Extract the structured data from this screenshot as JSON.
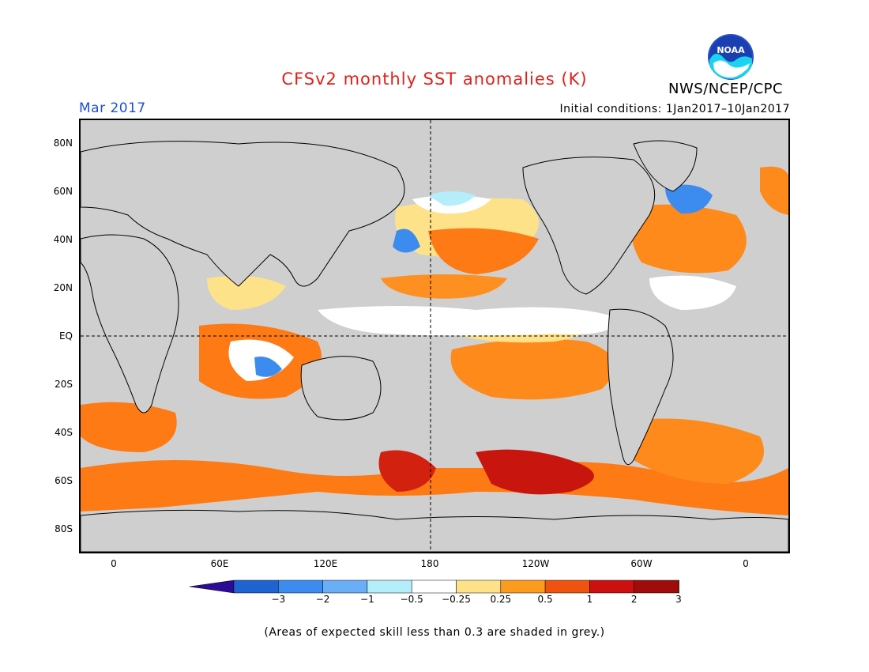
{
  "title": "CFSv2 monthly SST anomalies (K)",
  "agency": "NWS/NCEP/CPC",
  "logo_text": "NOAA",
  "month": "Mar 2017",
  "initial_conditions": "Initial conditions: 1Jan2017–10Jan2017",
  "lat_labels": [
    "80N",
    "60N",
    "40N",
    "20N",
    "EQ",
    "20S",
    "40S",
    "60S",
    "80S"
  ],
  "lon_labels": [
    "0",
    "60E",
    "120E",
    "180",
    "120W",
    "60W",
    "0"
  ],
  "colorbar": {
    "ticks": [
      "−3",
      "−2",
      "−1",
      "−0.5",
      "−0.25",
      "0.25",
      "0.5",
      "1",
      "2",
      "3"
    ],
    "colors": [
      "#2c0b96",
      "#1f63d0",
      "#3c8cf0",
      "#6aaef8",
      "#b3eefa",
      "#ffffff",
      "#fee28a",
      "#fd9b1e",
      "#f0520f",
      "#cc1010",
      "#a00c0c",
      "#7d4a34"
    ]
  },
  "colors": {
    "land": "#cfcfcf",
    "title": "#e0201a",
    "month": "#1f4fd8"
  },
  "footnote": "(Areas of expected skill less than 0.3 are shaded in grey.)"
}
